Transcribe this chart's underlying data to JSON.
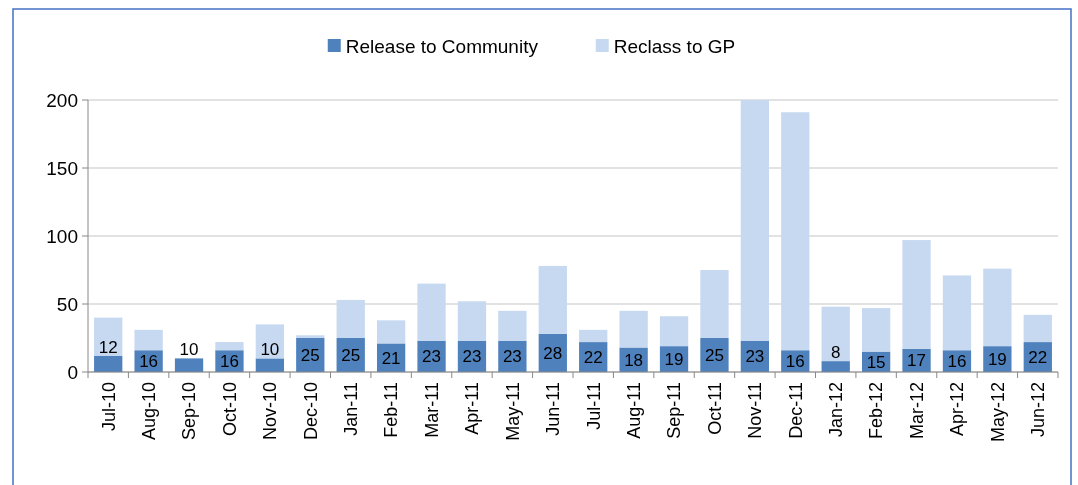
{
  "chart_data": {
    "type": "bar",
    "stacked": true,
    "categories": [
      "Jul-10",
      "Aug-10",
      "Sep-10",
      "Oct-10",
      "Nov-10",
      "Dec-10",
      "Jan-11",
      "Feb-11",
      "Mar-11",
      "Apr-11",
      "May-11",
      "Jun-11",
      "Jul-11",
      "Aug-11",
      "Sep-11",
      "Oct-11",
      "Nov-11",
      "Dec-11",
      "Jan-12",
      "Feb-12",
      "Mar-12",
      "Apr-12",
      "May-12",
      "Jun-12"
    ],
    "series": [
      {
        "name": "Release to Community",
        "color": "#4f81bd",
        "values": [
          12,
          16,
          10,
          16,
          10,
          25,
          25,
          21,
          23,
          23,
          23,
          28,
          22,
          18,
          19,
          25,
          23,
          16,
          8,
          15,
          17,
          16,
          19,
          22
        ],
        "value_labels": [
          "12",
          "16",
          "10",
          "16",
          "10",
          "25",
          "25",
          "21",
          "23",
          "23",
          "23",
          "28",
          "22",
          "18",
          "19",
          "25",
          "23",
          "16",
          "8",
          "15",
          "17",
          "16",
          "19",
          "22"
        ]
      },
      {
        "name": "Reclass to GP",
        "color": "#c6d9f0",
        "values": [
          28,
          15,
          null,
          6,
          25,
          2,
          28,
          17,
          42,
          29,
          22,
          50,
          9,
          27,
          22,
          50,
          177,
          175,
          40,
          32,
          80,
          55,
          57,
          20
        ]
      }
    ],
    "ylim": [
      0,
      200
    ],
    "yticks": [
      0,
      50,
      100,
      150,
      200
    ],
    "grid": "y",
    "legend": "top"
  }
}
